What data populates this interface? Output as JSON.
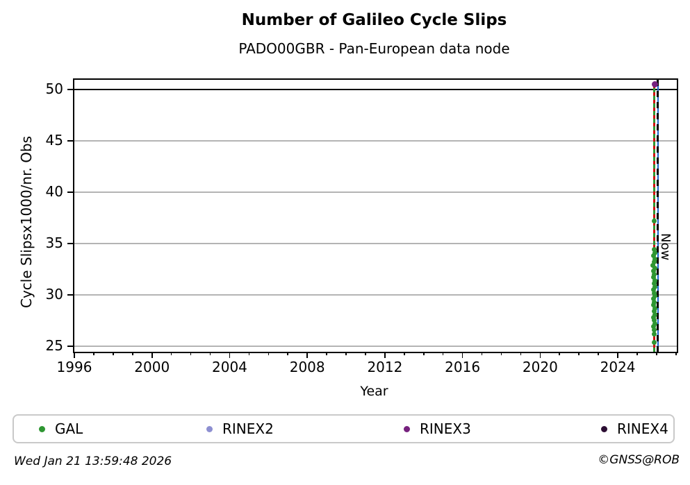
{
  "header": {
    "title": "Number of Galileo Cycle Slips",
    "subtitle": "PADO00GBR - Pan-European data node"
  },
  "chart_data": {
    "type": "scatter",
    "title": "Number of Galileo Cycle Slips",
    "subtitle": "PADO00GBR - Pan-European data node",
    "xlabel": "Year",
    "ylabel": "Cycle Slipsx1000/nr. Obs",
    "xlim": [
      1996,
      2027.04
    ],
    "ylim": [
      24.46,
      50.94
    ],
    "xticks_major": [
      1996,
      2000,
      2004,
      2008,
      2012,
      2016,
      2020,
      2024
    ],
    "xticks_minor_step": 1,
    "yticks": [
      25,
      30,
      35,
      40,
      45,
      50
    ],
    "grid": "horizontal",
    "grid_color": "#b4b4b4",
    "series": [
      {
        "name": "GAL",
        "color": "#2e9632",
        "points": [
          [
            2025.88,
            37.2
          ],
          [
            2025.86,
            34.4
          ],
          [
            2025.9,
            34.1
          ],
          [
            2025.84,
            33.8
          ],
          [
            2025.92,
            33.5
          ],
          [
            2025.87,
            33.2
          ],
          [
            2025.82,
            32.9
          ],
          [
            2025.91,
            32.6
          ],
          [
            2025.85,
            32.3
          ],
          [
            2025.89,
            32.0
          ],
          [
            2025.83,
            31.7
          ],
          [
            2025.93,
            31.4
          ],
          [
            2025.86,
            31.1
          ],
          [
            2025.9,
            30.8
          ],
          [
            2025.84,
            30.5
          ],
          [
            2025.88,
            30.2
          ],
          [
            2025.92,
            29.9
          ],
          [
            2025.85,
            29.6
          ],
          [
            2025.89,
            29.3
          ],
          [
            2025.83,
            29.0
          ],
          [
            2025.91,
            28.7
          ],
          [
            2025.86,
            28.4
          ],
          [
            2025.9,
            28.1
          ],
          [
            2025.84,
            27.8
          ],
          [
            2025.88,
            27.5
          ],
          [
            2025.92,
            27.2
          ],
          [
            2025.85,
            26.9
          ],
          [
            2025.89,
            26.6
          ],
          [
            2025.87,
            26.2
          ],
          [
            2025.88,
            25.4
          ]
        ]
      },
      {
        "name": "RINEX2",
        "color": "#8d8fd1",
        "points": []
      },
      {
        "name": "RINEX3",
        "color": "#76217e",
        "points": [
          [
            2025.9,
            50.5
          ]
        ]
      },
      {
        "name": "RINEX4",
        "color": "#2c0e33",
        "points": []
      }
    ],
    "annotations": {
      "hline_cap": {
        "y": 50,
        "color": "#000000"
      },
      "vline_data": {
        "x": 2025.87,
        "y_top": 50.5,
        "solid_color": "#2e9632",
        "dash_color": "#cf1010"
      },
      "vline_now": {
        "x": 2026.06,
        "solid_color": "#1e64c8",
        "dash_color": "#000000",
        "label": "Now"
      }
    },
    "legend_position": "bottom"
  },
  "legend": {
    "items": [
      {
        "label": "GAL",
        "color": "#2e9632"
      },
      {
        "label": "RINEX2",
        "color": "#8d8fd1"
      },
      {
        "label": "RINEX3",
        "color": "#76217e"
      },
      {
        "label": "RINEX4",
        "color": "#2c0e33"
      }
    ]
  },
  "footer": {
    "timestamp": "Wed Jan 21 13:59:48 2026",
    "credit": "©GNSS@ROB"
  }
}
